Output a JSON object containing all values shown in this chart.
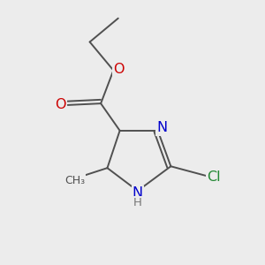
{
  "bg_color": "#ececec",
  "bond_color": "#505050",
  "bond_width": 1.4,
  "dbo": 0.012,
  "atom_colors": {
    "O": "#cc0000",
    "N": "#0000cc",
    "Cl": "#228833",
    "C": "#505050",
    "H": "#777777"
  },
  "font_size": 11.5,
  "font_size_h": 9.5,
  "font_size_small": 9.0
}
